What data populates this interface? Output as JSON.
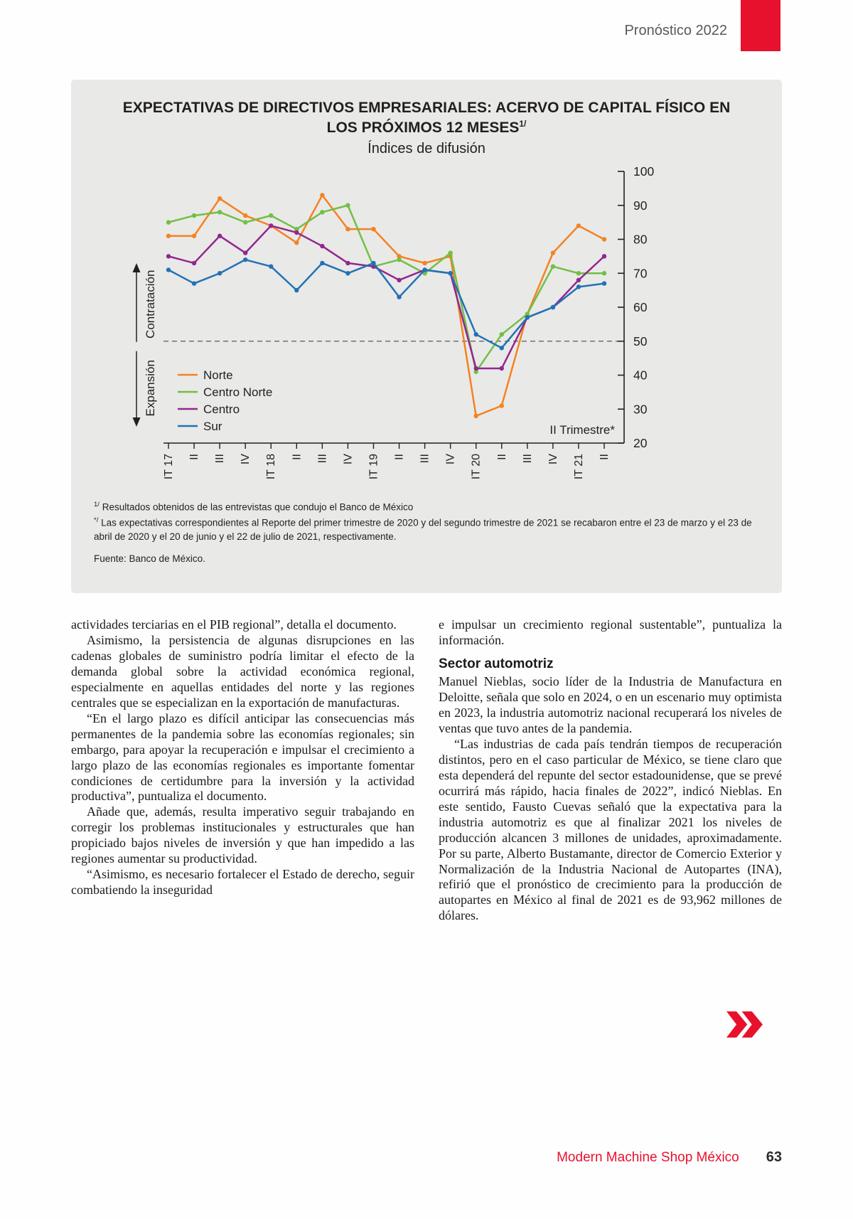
{
  "page": {
    "header": "Pronóstico 2022",
    "footer": {
      "magazine": "Modern Machine Shop México",
      "page_number": "63"
    },
    "accent_color": "#e8112d"
  },
  "chart": {
    "title": "EXPECTATIVAS DE DIRECTIVOS EMPRESARIALES: ACERVO DE CAPITAL FÍSICO EN LOS PRÓXIMOS 12 MESES",
    "title_sup": "1/",
    "subtitle": "Índices de difusión",
    "footnotes": [
      {
        "marker": "1/",
        "text": " Resultados obtenidos de las entrevistas que condujo el Banco de México"
      },
      {
        "marker": "*/",
        "text": " Las expectativas correspondientes al Reporte del primer trimestre de 2020 y del segundo trimestre de 2021 se recabaron entre el 23 de marzo y el 23 de abril de 2020 y el 20 de junio y el 22 de julio de 2021, respectivamente."
      }
    ],
    "source": "Fuente: Banco de México."
  },
  "chart_data": {
    "type": "line",
    "categories": [
      "IT 17",
      "II",
      "III",
      "IV",
      "IT 18",
      "II",
      "III",
      "IV",
      "IT 19",
      "II",
      "III",
      "IV",
      "IT 20",
      "II",
      "III",
      "IV",
      "IT 21",
      "II"
    ],
    "series": [
      {
        "name": "Norte",
        "color": "#f58220",
        "values": [
          81,
          81,
          92,
          87,
          84,
          79,
          93,
          83,
          83,
          75,
          73,
          75,
          28,
          31,
          58,
          76,
          84,
          80
        ]
      },
      {
        "name": "Centro Norte",
        "color": "#72bf44",
        "values": [
          85,
          87,
          88,
          85,
          87,
          83,
          88,
          90,
          72,
          74,
          70,
          76,
          41,
          52,
          58,
          72,
          70,
          70
        ]
      },
      {
        "name": "Centro",
        "color": "#92278f",
        "values": [
          75,
          73,
          81,
          76,
          84,
          82,
          78,
          73,
          72,
          68,
          71,
          70,
          42,
          42,
          57,
          60,
          68,
          75
        ]
      },
      {
        "name": "Sur",
        "color": "#2272b5",
        "values": [
          71,
          67,
          70,
          74,
          72,
          65,
          73,
          70,
          73,
          63,
          71,
          70,
          52,
          48,
          57,
          60,
          66,
          67
        ]
      }
    ],
    "ylim": [
      20,
      100
    ],
    "yticks": [
      20,
      30,
      40,
      50,
      60,
      70,
      80,
      90,
      100
    ],
    "reference_line": 50,
    "annotation": "II Trimestre*",
    "left_axis_labels": [
      "Contratación",
      "Expansión"
    ],
    "legend_position": "inside-left-bottom",
    "grid": false
  },
  "article": {
    "left": [
      "actividades terciarias en el PIB regional”, detalla el documento.",
      "Asimismo, la persistencia de algunas disrupciones en las cadenas globales de suministro podría limitar el efecto de la demanda global sobre la actividad económica regional, especialmente en aquellas entidades del norte y las regiones centrales que se especializan en la exportación de manufacturas.",
      "“En el largo plazo es difícil anticipar las consecuencias más permanentes de la pandemia sobre las economías regionales; sin embargo, para apoyar la recuperación e impulsar el crecimiento a largo plazo de las economías regionales es importante fomentar condiciones de certidumbre para la inversión y la actividad productiva”, puntualiza el documento.",
      "Añade que, además, resulta imperativo seguir trabajando en corregir los problemas institucionales y estructurales que han propiciado bajos niveles de inversión y que han impedido a las regiones aumentar su productividad.",
      "“Asimismo, es necesario fortalecer el Estado de derecho, seguir combatiendo la inseguridad"
    ],
    "right": {
      "intro": "e impulsar un crecimiento regional sustentable”, puntualiza la información.",
      "heading": "Sector automotriz",
      "p1": "Manuel Nieblas, socio líder de la Industria de Manufactura en Deloitte, señala que solo en 2024, o en un escenario muy optimista en 2023, la industria automotriz nacional recuperará los niveles de ventas que tuvo antes de la pandemia.",
      "p2": "“Las industrias de cada país tendrán tiempos de recuperación distintos, pero en el caso particular de México, se tiene claro que esta dependerá del repunte del sector estadounidense, que se prevé ocurrirá más rápido, hacia finales de 2022”, indicó Nieblas. En este sentido, Fausto Cuevas señaló que la expectativa para la industria automotriz es que al finalizar 2021 los niveles de producción alcancen 3 millones de unidades, aproximadamente. Por su parte, Alberto Bustamante, director de Comercio Exterior y Normalización de la Industria Nacional de Autopartes (INA), refirió que el pronóstico de crecimiento para la producción de autopartes en México al final de 2021 es de 93,962 millones de dólares."
    }
  }
}
